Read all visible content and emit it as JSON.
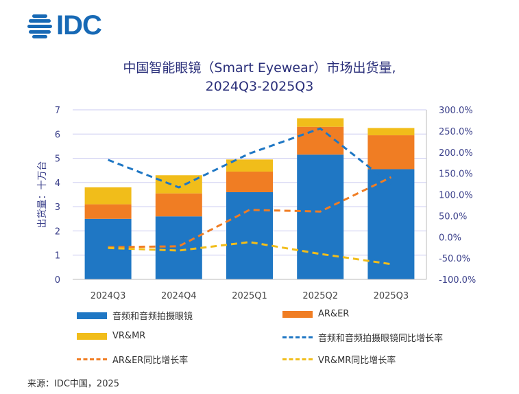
{
  "logo": {
    "text": "IDC"
  },
  "title": {
    "line1": "中国智能眼镜（Smart Eyewear）市场出货量,",
    "line2": "2024Q3-2025Q3"
  },
  "source": "来源：IDC中国，2025",
  "colors": {
    "audio": "#1f77c4",
    "arer": "#f07d23",
    "vrmr": "#f1bd1a",
    "grid": "#c9c9f0",
    "axis_text": "#3a3f8a"
  },
  "chart_data": {
    "type": "bar",
    "stacked": true,
    "categories": [
      "2024Q3",
      "2024Q4",
      "2025Q1",
      "2025Q2",
      "2025Q3"
    ],
    "ylabel": "出货量：十万台",
    "ylim": [
      0,
      7
    ],
    "yticks": [
      "0",
      "1",
      "2",
      "3",
      "4",
      "5",
      "6",
      "7"
    ],
    "y2lim": [
      -100,
      300
    ],
    "y2ticks": [
      "-100.0%",
      "-50.0%",
      "0.0%",
      "50.0%",
      "100.0%",
      "150.0%",
      "200.0%",
      "250.0%",
      "300.0%"
    ],
    "series": [
      {
        "name": "音频和音频拍摄眼镜",
        "kind": "bar",
        "color": "#1f77c4",
        "values": [
          2.5,
          2.6,
          3.6,
          5.15,
          4.55
        ]
      },
      {
        "name": "AR&ER",
        "kind": "bar",
        "color": "#f07d23",
        "values": [
          0.6,
          0.95,
          0.85,
          1.15,
          1.4
        ]
      },
      {
        "name": "VR&MR",
        "kind": "bar",
        "color": "#f1bd1a",
        "values": [
          0.7,
          0.75,
          0.5,
          0.35,
          0.3
        ]
      },
      {
        "name": "音频和音频拍摄眼镜同比增长率",
        "kind": "line",
        "axis": "right",
        "color": "#1f77c4",
        "values": [
          182,
          117,
          197,
          256,
          124
        ]
      },
      {
        "name": "AR&ER同比增长率",
        "kind": "line",
        "axis": "right",
        "color": "#f07d23",
        "values": [
          -24,
          -22,
          64,
          60,
          141
        ]
      },
      {
        "name": "VR&MR同比增长率",
        "kind": "line",
        "axis": "right",
        "color": "#f1bd1a",
        "values": [
          -26,
          -32,
          -12,
          -40,
          -64
        ]
      }
    ],
    "legend": [
      {
        "label": "音频和音频拍摄眼镜",
        "style": "bar",
        "color": "#1f77c4"
      },
      {
        "label": "AR&ER",
        "style": "bar",
        "color": "#f07d23"
      },
      {
        "label": "VR&MR",
        "style": "bar",
        "color": "#f1bd1a"
      },
      {
        "label": "音频和音频拍摄眼镜同比增长率",
        "style": "dash",
        "color": "#1f77c4"
      },
      {
        "label": "AR&ER同比增长率",
        "style": "dash",
        "color": "#f07d23"
      },
      {
        "label": "VR&MR同比增长率",
        "style": "dash",
        "color": "#f1bd1a"
      }
    ]
  }
}
